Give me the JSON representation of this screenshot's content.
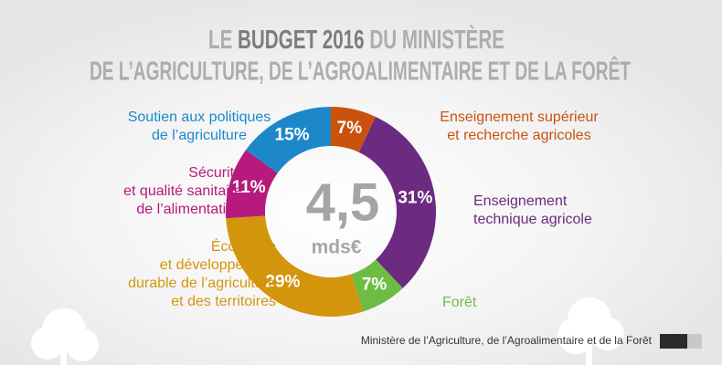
{
  "chart_data": {
    "type": "donut",
    "title_line1": [
      "LE",
      "BUDGET 2016",
      "DU MINISTÈRE"
    ],
    "title_line2": "DE L’AGRICULTURE, DE L’AGROALIMENTAIRE ET DE LA FORÊT",
    "center_value": "4,5",
    "center_unit": "mds€",
    "categories": [
      "Enseignement supérieur\net recherche agricoles",
      "Enseignement\ntechnique agricole",
      "Forêt",
      "Économie\net développement\ndurable de l’agriculture\net des territoires",
      "Sécurité\net qualité sanitaire\nde l’alimentation",
      "Soutien aux politiques\nde l’agriculture"
    ],
    "values": [
      7,
      31,
      7,
      29,
      11,
      15
    ],
    "value_labels": [
      "7%",
      "31%",
      "7%",
      "29%",
      "11%",
      "15%"
    ],
    "colors": [
      "#c9530d",
      "#6c2a80",
      "#6dbd45",
      "#d3950c",
      "#b51a7c",
      "#1d88c9"
    ],
    "footer": "Ministère de l’Agriculture, de l’Agroalimentaire et de la Forêt"
  }
}
